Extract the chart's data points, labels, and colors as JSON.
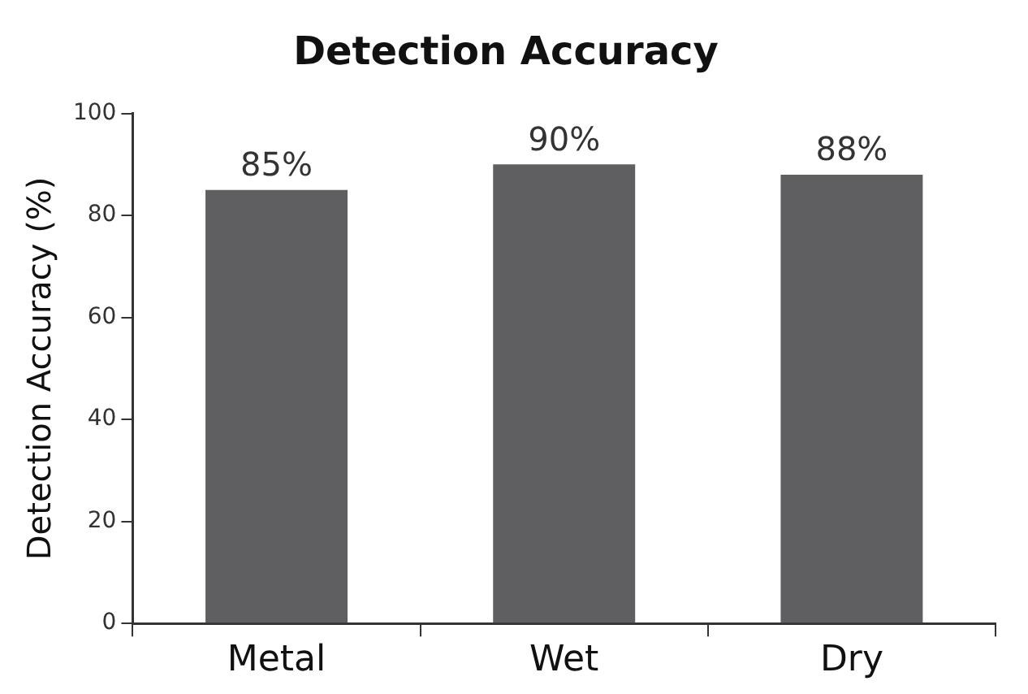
{
  "chart_data": {
    "type": "bar",
    "title": "Detection Accuracy",
    "ylabel": "Detection Accuracy (%)",
    "categories": [
      "Metal",
      "Wet",
      "Dry"
    ],
    "values": [
      85,
      90,
      88
    ],
    "value_labels": [
      "85%",
      "90%",
      "88%"
    ],
    "color": "#5f5f62",
    "ylim": [
      0,
      100
    ],
    "yticks": [
      0,
      20,
      40,
      60,
      80,
      100
    ],
    "grid": false,
    "legend": false
  }
}
